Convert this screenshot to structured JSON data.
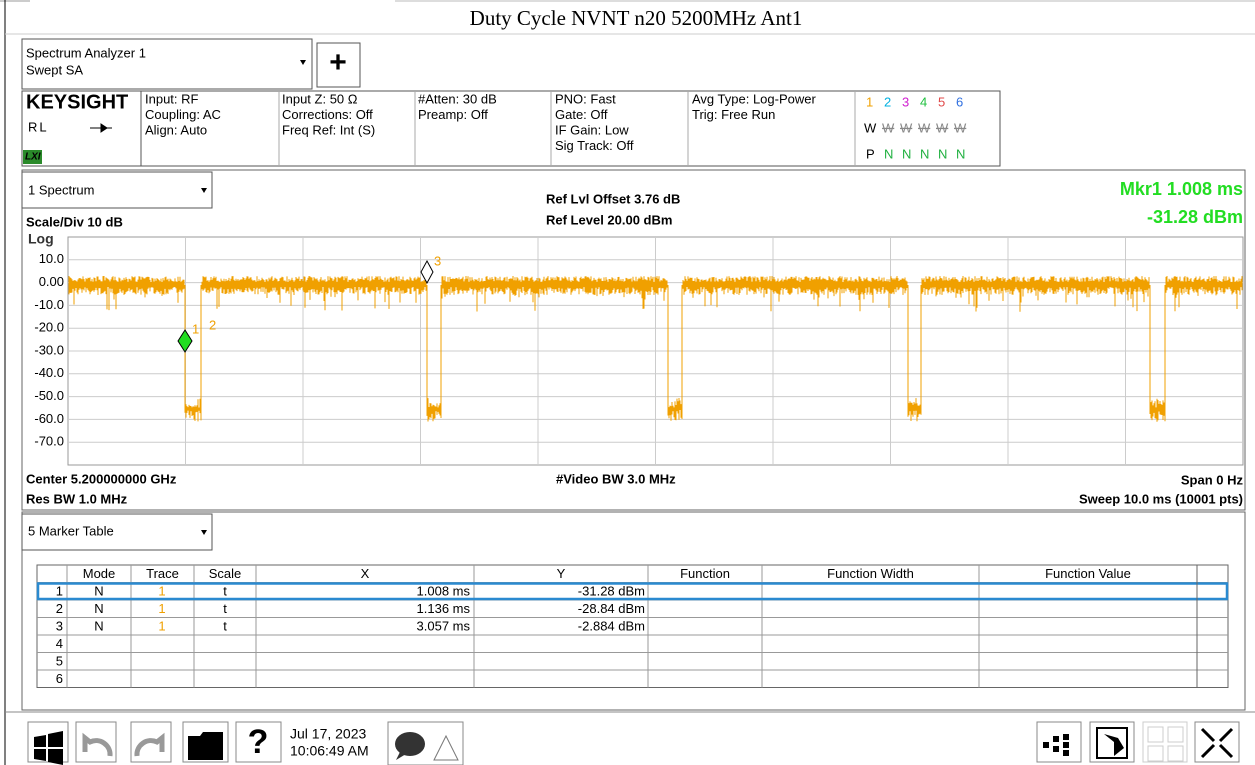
{
  "title": "Duty Cycle NVNT n20 5200MHz Ant1",
  "header": {
    "analyzer": "Spectrum Analyzer 1",
    "mode": "Swept SA",
    "add_button": "+"
  },
  "info": {
    "brand": "KEYSIGHT",
    "rl": "RL",
    "lxi": "LXI",
    "columns": [
      [
        "Input: RF",
        "Coupling: AC",
        "Align: Auto"
      ],
      [
        "Input Z: 50 Ω",
        "Corrections: Off",
        "Freq Ref: Int (S)"
      ],
      [
        "#Atten: 30 dB",
        "Preamp: Off"
      ],
      [
        "PNO: Fast",
        "Gate: Off",
        "IF Gain: Low",
        "Sig Track: Off"
      ],
      [
        "Avg Type: Log-Power",
        "Trig: Free Run"
      ]
    ],
    "trace_numbers": [
      "1",
      "2",
      "3",
      "4",
      "5",
      "6"
    ],
    "trace_colors": [
      "#f0a000",
      "#00b0e0",
      "#d020d0",
      "#20c040",
      "#e04848",
      "#3070e0"
    ],
    "trace_types": [
      "W",
      "W",
      "W",
      "W",
      "W",
      "W"
    ],
    "detectors": [
      "P",
      "N",
      "N",
      "N",
      "N",
      "N"
    ]
  },
  "spectrum": {
    "window": "1 Spectrum",
    "ref_offset": "Ref Lvl Offset 3.76 dB",
    "ref_level": "Ref Level 20.00 dBm",
    "marker_readout": "Mkr1  1.008 ms",
    "marker_value": "-31.28 dBm",
    "scale": "Scale/Div 10 dB",
    "log": "Log",
    "y_labels": [
      "10.0",
      "0.00",
      "-10.0",
      "-20.0",
      "-30.0",
      "-40.0",
      "-50.0",
      "-60.0",
      "-70.0"
    ],
    "trace_color": "#f0a000",
    "marker_labels": [
      "1",
      "2",
      "3"
    ],
    "center": "Center 5.200000000 GHz",
    "video_bw": "#Video BW 3.0 MHz",
    "span": "Span 0 Hz",
    "res_bw": "Res BW 1.0 MHz",
    "sweep": "Sweep 10.0 ms (10001 pts)"
  },
  "marker_table": {
    "window": "5 Marker Table",
    "headers": [
      "Mode",
      "Trace",
      "Scale",
      "X",
      "Y",
      "Function",
      "Function Width",
      "Function Value"
    ],
    "rows": [
      {
        "n": "1",
        "mode": "N",
        "trace": "1",
        "scale": "t",
        "x": "1.008 ms",
        "y": "-31.28 dBm"
      },
      {
        "n": "2",
        "mode": "N",
        "trace": "1",
        "scale": "t",
        "x": "1.136 ms",
        "y": "-28.84 dBm"
      },
      {
        "n": "3",
        "mode": "N",
        "trace": "1",
        "scale": "t",
        "x": "3.057 ms",
        "y": "-2.884 dBm"
      },
      {
        "n": "4"
      },
      {
        "n": "5"
      },
      {
        "n": "6"
      }
    ]
  },
  "taskbar": {
    "date": "Jul 17, 2023",
    "time": "10:06:49 AM",
    "help": "?"
  }
}
